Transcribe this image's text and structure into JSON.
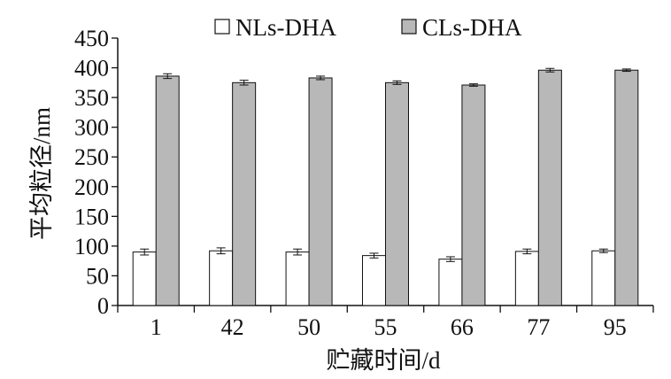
{
  "chart_data": {
    "type": "bar",
    "xlabel": "贮藏时间/d",
    "ylabel": "平均粒径/nm",
    "categories": [
      "1",
      "42",
      "50",
      "55",
      "66",
      "77",
      "95"
    ],
    "ylim": [
      0,
      450
    ],
    "yticks": [
      0,
      50,
      100,
      150,
      200,
      250,
      300,
      350,
      400,
      450
    ],
    "grid": false,
    "legend_position": "top",
    "series": [
      {
        "name": "NLs-DHA",
        "color": "#ffffff",
        "values": [
          90,
          92,
          90,
          84,
          78,
          91,
          92
        ],
        "errors": [
          5,
          5,
          5,
          4,
          4,
          4,
          3
        ]
      },
      {
        "name": "CLs-DHA",
        "color": "#b8b8b8",
        "values": [
          386,
          375,
          383,
          375,
          371,
          396,
          396
        ],
        "errors": [
          4,
          4,
          3,
          3,
          2,
          3,
          2
        ]
      }
    ]
  }
}
